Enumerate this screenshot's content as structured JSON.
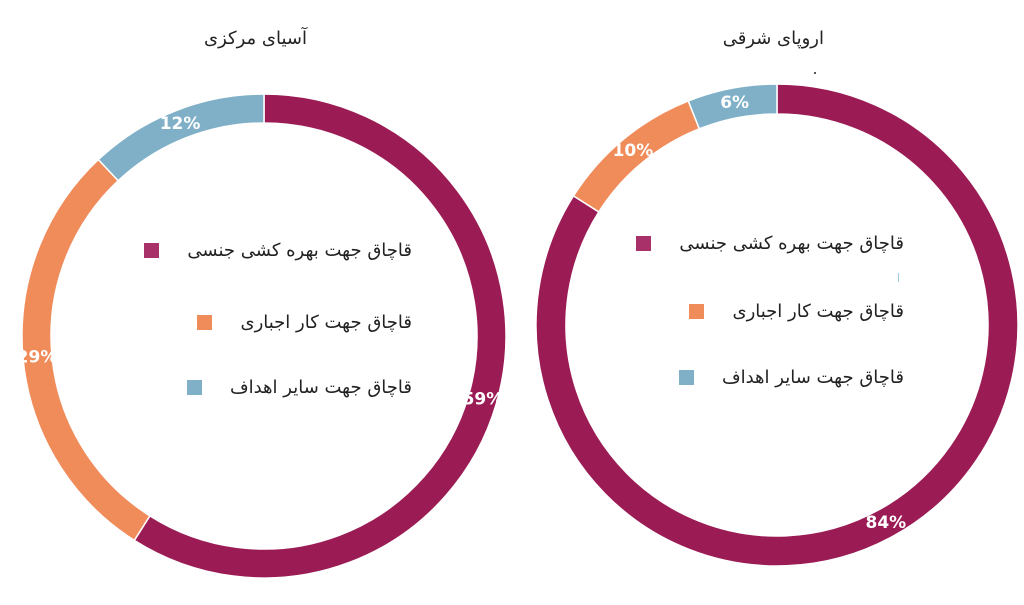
{
  "colors": {
    "sexual": "#9b1b54",
    "forced": "#f08b5a",
    "other": "#7fb0c8",
    "sexual_swatch": "#a8316a"
  },
  "chart_data": [
    {
      "type": "pie",
      "title": "آسیای مرکزی",
      "categories": [
        "قاچاق جهت بهره کشی جنسی",
        "قاچاق جهت کار اجباری",
        "قاچاق جهت سایر اهداف"
      ],
      "values": [
        59,
        29,
        12
      ],
      "labels": [
        "59%",
        "29%",
        "12%"
      ],
      "legend_position": "center"
    },
    {
      "type": "pie",
      "title": "اروپای شرقی",
      "categories": [
        "قاچاق جهت بهره کشی جنسی",
        "قاچاق جهت کار اجباری",
        "قاچاق جهت سایر اهداف"
      ],
      "values": [
        84,
        10,
        6
      ],
      "labels": [
        "84%",
        "10%",
        "6%"
      ],
      "legend_position": "center"
    }
  ]
}
